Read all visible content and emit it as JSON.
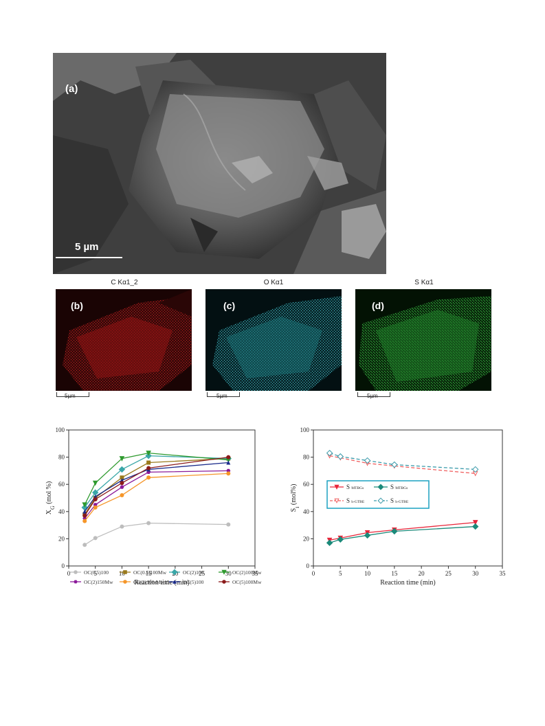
{
  "figure": {
    "sem": {
      "label": "(a)",
      "scale_text": "5 µm"
    },
    "maps": [
      {
        "title": "C Kα1_2",
        "label": "(b)",
        "scale_text": "5µm",
        "color": "#c01818"
      },
      {
        "title": "O Kα1",
        "label": "(c)",
        "scale_text": "5µm",
        "color": "#3fbfc9"
      },
      {
        "title": "S Kα1",
        "label": "(d)",
        "scale_text": "5µm",
        "color": "#2fa83a"
      }
    ]
  },
  "chart_data": [
    {
      "type": "line",
      "xlabel": "Reaction time (min)",
      "ylabel": "X_G (mol %)",
      "xlim": [
        0,
        35
      ],
      "ylim": [
        0,
        100
      ],
      "xticks": [
        0,
        5,
        10,
        15,
        20,
        25,
        30,
        35
      ],
      "yticks": [
        0,
        20,
        40,
        60,
        80,
        100
      ],
      "legend_position": "bottom",
      "series": [
        {
          "name": "OC(0.5)100",
          "color": "#bdbdbd",
          "marker": "circle",
          "x": [
            3,
            5,
            10,
            15,
            30
          ],
          "y": [
            15.5,
            20.5,
            29,
            31.5,
            30.5
          ]
        },
        {
          "name": "OC(0.5)100Mw",
          "color": "#9a7a1c",
          "marker": "square",
          "x": [
            3,
            5,
            10,
            15,
            30
          ],
          "y": [
            38,
            50,
            65,
            76,
            79
          ]
        },
        {
          "name": "OC(2)100",
          "color": "#3aa7a8",
          "marker": "diamond",
          "x": [
            3,
            5,
            10,
            15,
            30
          ],
          "y": [
            43,
            54,
            71,
            81,
            79
          ]
        },
        {
          "name": "OC(2)100Mw",
          "color": "#2e9a2e",
          "marker": "triangle-down",
          "x": [
            3,
            5,
            10,
            15,
            30
          ],
          "y": [
            45,
            61,
            79,
            83,
            78
          ]
        },
        {
          "name": "OC(2)150Mw",
          "color": "#8b1a9a",
          "marker": "hexagon",
          "x": [
            3,
            5,
            10,
            15,
            30
          ],
          "y": [
            35,
            45,
            58,
            69,
            70
          ]
        },
        {
          "name": "OC(2)100-Mw15",
          "color": "#f5962a",
          "marker": "circle",
          "x": [
            3,
            5,
            10,
            15,
            30
          ],
          "y": [
            33,
            43,
            52,
            65,
            68
          ]
        },
        {
          "name": "OC(5)100",
          "color": "#1a2a8a",
          "marker": "triangle-up",
          "x": [
            3,
            5,
            10,
            15,
            30
          ],
          "y": [
            40,
            51,
            63,
            71,
            76
          ]
        },
        {
          "name": "OC(5)100Mw",
          "color": "#8b1a1a",
          "marker": "circle",
          "x": [
            3,
            5,
            10,
            15,
            30
          ],
          "y": [
            37,
            49,
            61,
            72,
            80
          ]
        }
      ]
    },
    {
      "type": "line",
      "xlabel": "Reaction time (min)",
      "ylabel": "S_i (mol%)",
      "xlim": [
        0,
        35
      ],
      "ylim": [
        0,
        100
      ],
      "xticks": [
        0,
        5,
        10,
        15,
        20,
        25,
        30,
        35
      ],
      "yticks": [
        0,
        20,
        40,
        60,
        80,
        100
      ],
      "legend_position": "center-left",
      "series": [
        {
          "name": "S_MTBGs",
          "sub": "MTBGs",
          "color": "#e8263a",
          "marker": "triangle-down",
          "dashed": false,
          "x": [
            3,
            5,
            10,
            15,
            30
          ],
          "y": [
            19,
            20.5,
            24.5,
            26.5,
            32
          ]
        },
        {
          "name": "S_MTBGs",
          "sub": "MTBGs",
          "color": "#1b8a7a",
          "marker": "diamond",
          "dashed": false,
          "x": [
            3,
            5,
            10,
            15,
            30
          ],
          "y": [
            17,
            19.5,
            22.5,
            25.5,
            29
          ]
        },
        {
          "name": "S_h-GTBE",
          "sub": "h-GTBE",
          "color": "#f06060",
          "marker": "triangle-down-open",
          "dashed": true,
          "x": [
            3,
            5,
            10,
            15,
            30
          ],
          "y": [
            81,
            79.5,
            75.5,
            73.5,
            68
          ]
        },
        {
          "name": "S_h-GTBE",
          "sub": "h-GTBE",
          "color": "#3a9aaa",
          "marker": "diamond-open",
          "dashed": true,
          "x": [
            3,
            5,
            10,
            15,
            30
          ],
          "y": [
            83,
            80.5,
            77.5,
            74.5,
            71
          ]
        }
      ]
    }
  ]
}
